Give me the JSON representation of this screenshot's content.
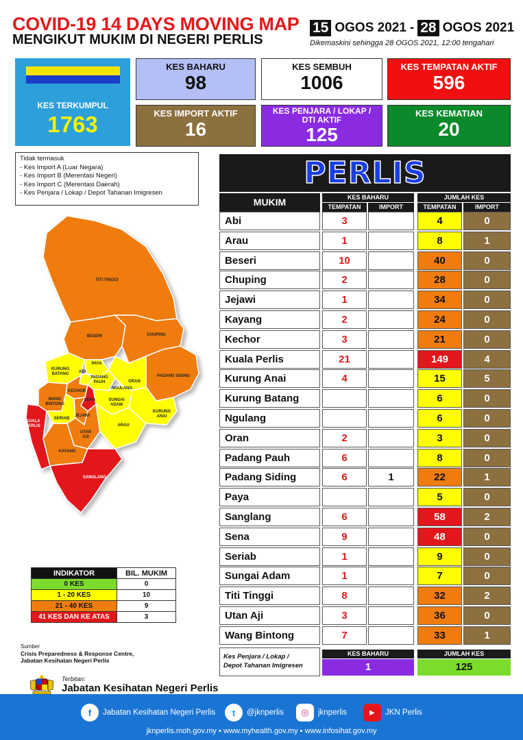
{
  "header": {
    "title": "COVID-19 14 DAYS MOVING MAP",
    "subtitle": "MENGIKUT MUKIM DI NEGERI PERLIS",
    "date_from_day": "15",
    "date_from_rest": "OGOS 2021",
    "date_sep": "-",
    "date_to_day": "28",
    "date_to_rest": "OGOS 2021",
    "updated": "Dikemaskini sehingga  28 OGOS  2021, 12:00 tengahari"
  },
  "stats": {
    "kes_terkumpul": {
      "label": "KES TERKUMPUL",
      "value": "1763"
    },
    "kes_baharu": {
      "label": "KES BAHARU",
      "value": "98"
    },
    "kes_sembuh": {
      "label": "KES SEMBUH",
      "value": "1006"
    },
    "kes_tempatan_aktif": {
      "label": "KES TEMPATAN AKTIF",
      "value": "596"
    },
    "kes_import_aktif": {
      "label": "KES IMPORT AKTIF",
      "value": "16"
    },
    "kes_penjara": {
      "label1": "KES PENJARA / LOKAP /",
      "label2": "DTI AKTIF",
      "value": "125"
    },
    "kes_kematian": {
      "label": "KES KEMATIAN",
      "value": "20"
    }
  },
  "note": {
    "heading": "Tidak termasuk",
    "items": [
      "- Kes Import A (Luar Negara)",
      "- Kes Import B (Merentasi Negeri)",
      "- Kes Import C (Merentasi Daerah)",
      "- Kes Penjara / Lokap / Depot Tahanan Imigresen"
    ]
  },
  "map_labels": {
    "titi_tinggi": "TITI TINGGI",
    "beseri": "BESERI",
    "chuping": "CHUPING",
    "paya": "PAYA",
    "kurung_batang": "KURUNG\nBATANG",
    "abi": "ABI",
    "padang_pauh": "PADANG\nPAUH",
    "oran": "ORAN",
    "ngulang": "NGULANG",
    "padang_siding": "PADANG SIDING",
    "kechor": "KECHOR",
    "wang_bintong": "WANG\nBINTONG",
    "sena": "SENA",
    "sungai_adam": "SUNGAI\nADAM",
    "kurung_anai": "KURUNG\nANAI",
    "kuala_perlis": "KUALA\nPERLIS",
    "seriab": "SERIAB",
    "jejawi": "JEJAWI",
    "utan_aji": "UTAN\nAJI",
    "arau": "ARAU",
    "kayang": "KAYANG",
    "sanglang": "SANGLANG"
  },
  "legend": {
    "col1": "INDIKATOR",
    "col2": "BIL. MUKIM",
    "rows": [
      {
        "label": "0 KES",
        "count": "0",
        "color": "#7cdc2c"
      },
      {
        "label": "1 - 20 KES",
        "count": "10",
        "color": "#ffff00"
      },
      {
        "label": "21 - 40 KES",
        "count": "9",
        "color": "#f07c10"
      },
      {
        "label": "41 KES DAN KE ATAS",
        "count": "3",
        "color": "#e3171b"
      }
    ]
  },
  "source": {
    "label": "Sumber",
    "line1": "Crisis Preparedness & Response Centre,",
    "line2": "Jabatan Kesihatan Negeri Perlis"
  },
  "publisher": {
    "label": "Terbitan:",
    "name": "Jabatan Kesihatan Negeri Perlis"
  },
  "table": {
    "title": "PERLIS",
    "h_mukim": "MUKIM",
    "h_kes_baharu": "KES BAHARU",
    "h_jumlah_kes": "JUMLAH KES",
    "h_tempatan": "TEMPATAN",
    "h_import": "IMPORT",
    "rows": [
      {
        "mukim": "Abi",
        "tb": "3",
        "ib": "",
        "jt": "4",
        "ji": "0",
        "color": "#ffff00"
      },
      {
        "mukim": "Arau",
        "tb": "1",
        "ib": "",
        "jt": "8",
        "ji": "1",
        "color": "#ffff00"
      },
      {
        "mukim": "Beseri",
        "tb": "10",
        "ib": "",
        "jt": "40",
        "ji": "0",
        "color": "#f07c10"
      },
      {
        "mukim": "Chuping",
        "tb": "2",
        "ib": "",
        "jt": "28",
        "ji": "0",
        "color": "#f07c10"
      },
      {
        "mukim": "Jejawi",
        "tb": "1",
        "ib": "",
        "jt": "34",
        "ji": "0",
        "color": "#f07c10"
      },
      {
        "mukim": "Kayang",
        "tb": "2",
        "ib": "",
        "jt": "24",
        "ji": "0",
        "color": "#f07c10"
      },
      {
        "mukim": "Kechor",
        "tb": "3",
        "ib": "",
        "jt": "21",
        "ji": "0",
        "color": "#f07c10"
      },
      {
        "mukim": "Kuala Perlis",
        "tb": "21",
        "ib": "",
        "jt": "149",
        "ji": "4",
        "color": "#e3171b"
      },
      {
        "mukim": "Kurung Anai",
        "tb": "4",
        "ib": "",
        "jt": "15",
        "ji": "5",
        "color": "#ffff00"
      },
      {
        "mukim": "Kurung Batang",
        "tb": "",
        "ib": "",
        "jt": "6",
        "ji": "0",
        "color": "#ffff00"
      },
      {
        "mukim": "Ngulang",
        "tb": "",
        "ib": "",
        "jt": "6",
        "ji": "0",
        "color": "#ffff00"
      },
      {
        "mukim": "Oran",
        "tb": "2",
        "ib": "",
        "jt": "3",
        "ji": "0",
        "color": "#ffff00"
      },
      {
        "mukim": "Padang Pauh",
        "tb": "6",
        "ib": "",
        "jt": "8",
        "ji": "0",
        "color": "#ffff00"
      },
      {
        "mukim": "Padang Siding",
        "tb": "6",
        "ib": "1",
        "jt": "22",
        "ji": "1",
        "color": "#f07c10"
      },
      {
        "mukim": "Paya",
        "tb": "",
        "ib": "",
        "jt": "5",
        "ji": "0",
        "color": "#ffff00"
      },
      {
        "mukim": "Sanglang",
        "tb": "6",
        "ib": "",
        "jt": "58",
        "ji": "2",
        "color": "#e3171b"
      },
      {
        "mukim": "Sena",
        "tb": "9",
        "ib": "",
        "jt": "48",
        "ji": "0",
        "color": "#e3171b"
      },
      {
        "mukim": "Seriab",
        "tb": "1",
        "ib": "",
        "jt": "9",
        "ji": "0",
        "color": "#ffff00"
      },
      {
        "mukim": "Sungai Adam",
        "tb": "1",
        "ib": "",
        "jt": "7",
        "ji": "0",
        "color": "#ffff00"
      },
      {
        "mukim": "Titi Tinggi",
        "tb": "8",
        "ib": "",
        "jt": "32",
        "ji": "2",
        "color": "#f07c10"
      },
      {
        "mukim": "Utan Aji",
        "tb": "3",
        "ib": "",
        "jt": "36",
        "ji": "0",
        "color": "#f07c10"
      },
      {
        "mukim": "Wang Bintong",
        "tb": "7",
        "ib": "",
        "jt": "33",
        "ji": "1",
        "color": "#f07c10"
      }
    ],
    "penjara": {
      "label1": "Kes Penjara / Lokap /",
      "label2": "Depot Tahanan Imigresen",
      "h_baharu": "KES BAHARU",
      "h_jumlah": "JUMLAH KES",
      "baharu": "1",
      "jumlah": "125"
    }
  },
  "footer": {
    "facebook": "Jabatan Kesihatan Negeri Perlis",
    "twitter": "@jknperlis",
    "instagram": "jknperlis",
    "youtube": "JKN Perlis",
    "web1": "jknperlis.moh.gov.my",
    "web2": "www.myhealth.gov.my",
    "web3": "www.infosihat.gov.my"
  }
}
